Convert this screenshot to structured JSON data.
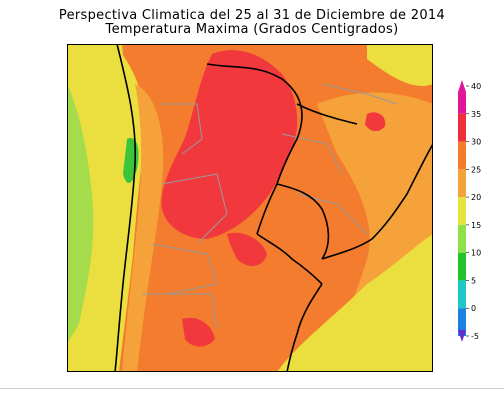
{
  "title": {
    "line1": "Perspectiva Climatica del 25 al 31 de Diciembre de 2014",
    "line2": "Temperatura Maxima (Grados Centigrados)"
  },
  "legend": {
    "ticks": [
      "40",
      "35",
      "30",
      "25",
      "20",
      "15",
      "10",
      "5",
      "0",
      "-5"
    ],
    "colors": {
      "40": "#e0159a",
      "35": "#ee2f3a",
      "30": "#f47b30",
      "25": "#f2a43a",
      "20": "#e8e23c",
      "15": "#8fe04a",
      "10": "#22c42c",
      "5": "#1ec8c6",
      "0": "#1d7fe0",
      "-5": "#6a2ccf"
    }
  },
  "colors": {
    "hot": "#f0383d",
    "warm": "#f47c2e",
    "mild": "#f5a23a",
    "pleasant": "#eadf3f",
    "cool": "#a5dc4c",
    "cold": "#3cc43a",
    "border": "#000000",
    "province": "#9a9a9a"
  }
}
